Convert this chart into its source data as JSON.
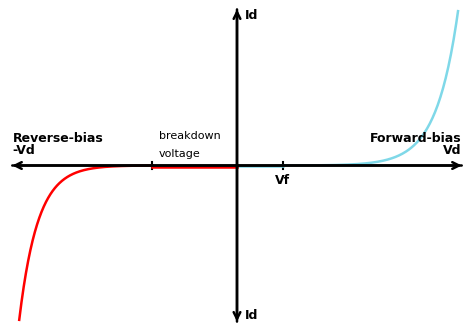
{
  "background_color": "#ffffff",
  "axis_color": "#000000",
  "forward_curve_color": "#7fd8e8",
  "reverse_curve_color": "#ff0000",
  "forward_bias_label": "Forward-bias",
  "reverse_bias_label": "Reverse-bias",
  "vd_label": "Vd",
  "minus_vd_label": "-Vd",
  "vf_label": "Vf",
  "id_label_top": "Id",
  "id_label_bottom": "Id",
  "breakdown_label_line1": "breakdown",
  "breakdown_label_line2": "voltage",
  "xlim": [
    -3.5,
    3.5
  ],
  "ylim": [
    -3.5,
    3.5
  ],
  "breakdown_x": -1.3,
  "vf_x": 0.7,
  "axis_lw": 1.8,
  "curve_lw": 1.8
}
